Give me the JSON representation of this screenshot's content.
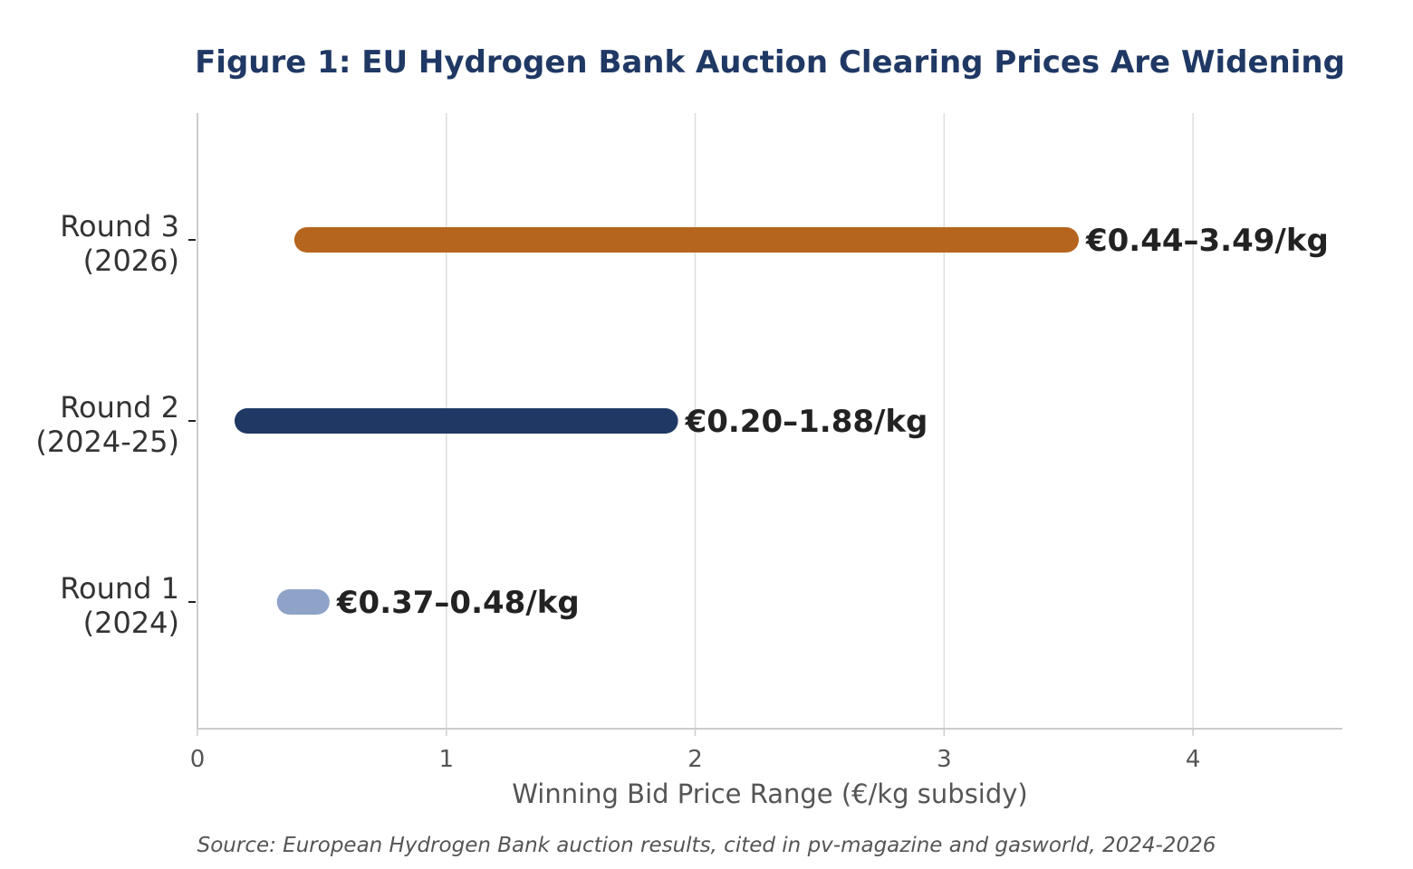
{
  "chart_data": {
    "type": "range-bar",
    "title": "Figure 1: EU Hydrogen Bank Auction Clearing Prices Are Widening",
    "xlabel": "Winning Bid Price Range (€/kg subsidy)",
    "ylabel": "",
    "xlim": [
      0,
      4.6
    ],
    "xticks": [
      0,
      1,
      2,
      3,
      4
    ],
    "grid": "vertical",
    "categories": [
      {
        "lines": [
          "Round 3",
          "(2026)"
        ],
        "low": 0.44,
        "high": 3.49,
        "label": "€0.44–3.49/kg",
        "color": "#b5651d"
      },
      {
        "lines": [
          "Round 2",
          "(2024-25)"
        ],
        "low": 0.2,
        "high": 1.88,
        "label": "€0.20–1.88/kg",
        "color": "#1f3864"
      },
      {
        "lines": [
          "Round 1",
          "(2024)"
        ],
        "low": 0.37,
        "high": 0.48,
        "label": "€0.37–0.48/kg",
        "color": "#8fa3c8"
      }
    ],
    "source": "Source: European Hydrogen Bank auction results, cited in pv-magazine and gasworld, 2024-2026"
  },
  "colors": {
    "title": "#1f3864",
    "text": "#333333",
    "muted": "#555555",
    "grid": "#dddddd",
    "axis": "#cccccc",
    "data_label": "#222222"
  }
}
